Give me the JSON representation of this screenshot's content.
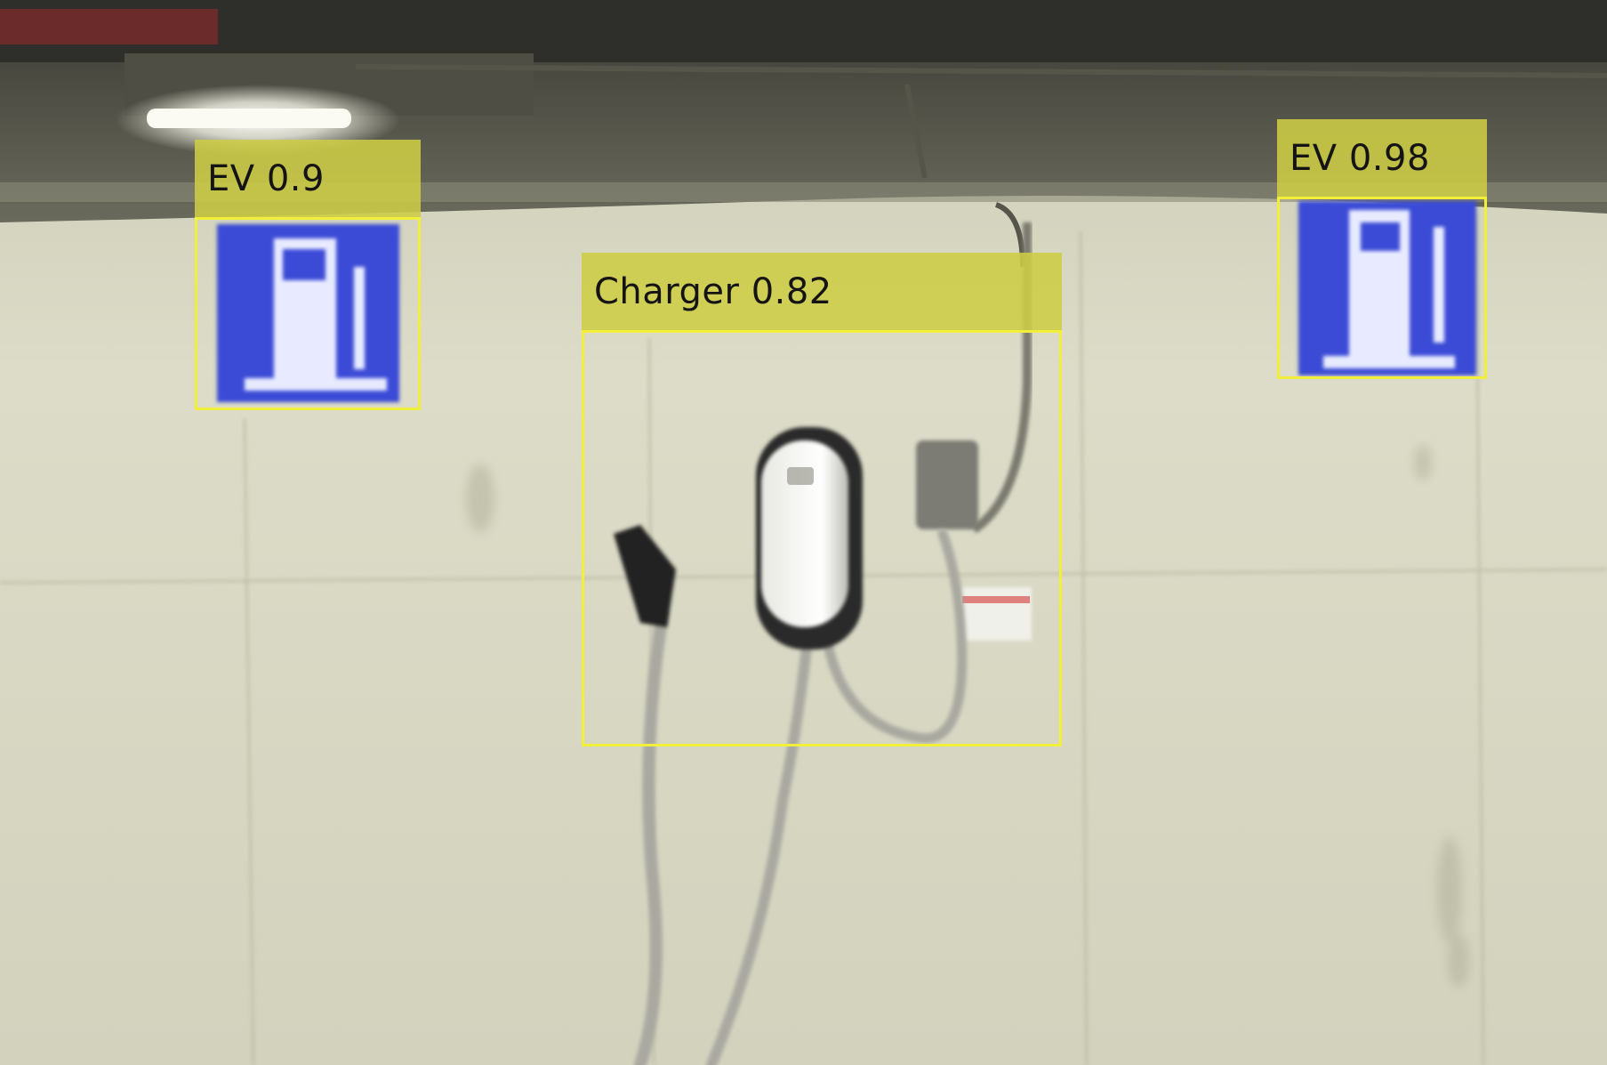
{
  "detections": [
    {
      "label": "EV 0.9",
      "class": "EV",
      "score": 0.9
    },
    {
      "label": "Charger 0.82",
      "class": "Charger",
      "score": 0.82
    },
    {
      "label": "EV 0.98",
      "class": "EV",
      "score": 0.98
    }
  ],
  "colors": {
    "box_outline": "#f2ef3a",
    "label_fill": "#cdcd46",
    "sign_blue": "#3a4bd6",
    "wall": "#d8d8c4"
  }
}
